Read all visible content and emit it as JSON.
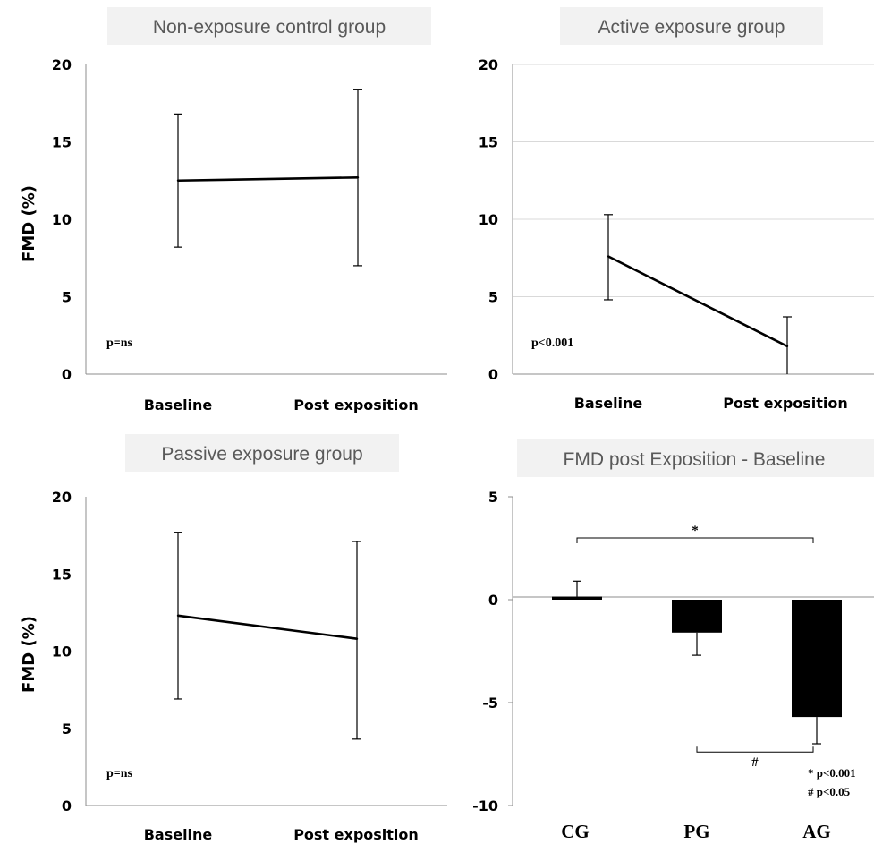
{
  "chart_data": [
    {
      "type": "line",
      "title": "Non-exposure control group",
      "ylabel": "FMD (%)",
      "categories": [
        "Baseline",
        "Post exposition"
      ],
      "values": [
        12.5,
        12.7
      ],
      "error_low": [
        8.2,
        7.0
      ],
      "error_high": [
        16.8,
        18.4
      ],
      "ylim": [
        0,
        20
      ],
      "yticks": [
        "0",
        "5",
        "10",
        "15",
        "20"
      ],
      "annotation": "p=ns",
      "grid": false
    },
    {
      "type": "line",
      "title": "Active exposure group",
      "ylabel": "",
      "categories": [
        "Baseline",
        "Post exposition"
      ],
      "values": [
        7.6,
        1.8
      ],
      "error_low": [
        4.8,
        0.0
      ],
      "error_high": [
        10.3,
        3.7
      ],
      "ylim": [
        0,
        20
      ],
      "yticks": [
        "0",
        "5",
        "10",
        "15",
        "20"
      ],
      "annotation": "p<0.001",
      "grid": true
    },
    {
      "type": "line",
      "title": "Passive exposure group",
      "ylabel": "FMD (%)",
      "categories": [
        "Baseline",
        "Post exposition"
      ],
      "values": [
        12.3,
        10.8
      ],
      "error_low": [
        6.9,
        4.3
      ],
      "error_high": [
        17.7,
        17.1
      ],
      "ylim": [
        0,
        20
      ],
      "yticks": [
        "0",
        "5",
        "10",
        "15",
        "20"
      ],
      "annotation": "p=ns",
      "grid": false
    },
    {
      "type": "bar",
      "title": "FMD post Exposition - Baseline",
      "ylabel": "",
      "categories": [
        "CG",
        "PG",
        "AG"
      ],
      "values": [
        0.15,
        -1.6,
        -5.7
      ],
      "error_low": [
        0.15,
        -2.7,
        -7.0
      ],
      "error_high": [
        0.9,
        -1.6,
        -5.7
      ],
      "ylim": [
        -10,
        5
      ],
      "yticks": [
        "-10",
        "-5",
        "0",
        "5"
      ],
      "brackets": [
        {
          "from": "CG",
          "to": "AG",
          "level": 3.0,
          "label": "*"
        },
        {
          "from": "PG",
          "to": "AG",
          "level": -7.4,
          "label": "#"
        }
      ],
      "notes": [
        "* p<0.001",
        "# p<0.05"
      ],
      "grid": false
    }
  ]
}
